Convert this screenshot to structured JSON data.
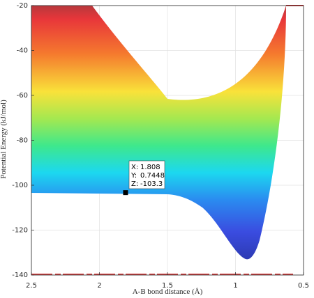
{
  "chart_data": {
    "type": "surface",
    "xlabel": "A-B bond distance (Å)",
    "ylabel": "Potential Energy (kJ/mol)",
    "xlim": [
      2.5,
      0.5
    ],
    "xticks": [
      2.5,
      2,
      1.5,
      1,
      0.5
    ],
    "ylim": [
      -140,
      -20
    ],
    "yticks": [
      -140,
      -120,
      -100,
      -80,
      -60,
      -40,
      -20
    ],
    "grid": true,
    "datatip": {
      "fields": [
        {
          "label": "X:",
          "value": 1.808
        },
        {
          "label": "Y:",
          "value": 0.7448
        },
        {
          "label": "Z:",
          "value": -103.3
        }
      ]
    }
  }
}
